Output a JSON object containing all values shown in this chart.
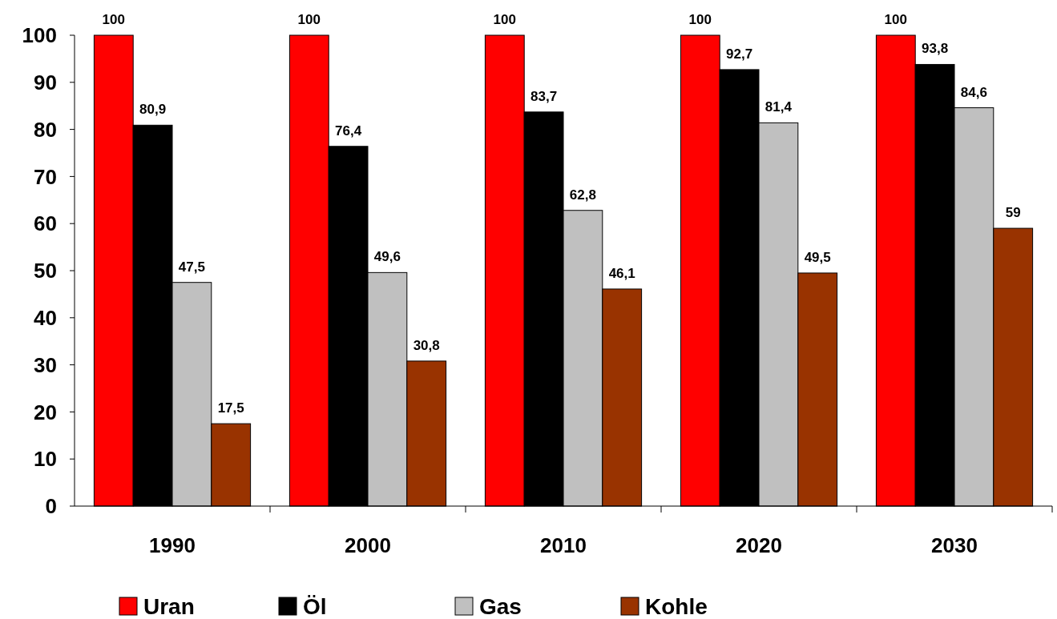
{
  "chart_data": {
    "type": "bar",
    "categories": [
      "1990",
      "2000",
      "2010",
      "2020",
      "2030"
    ],
    "series": [
      {
        "name": "Uran",
        "color": "#ff0000",
        "values": [
          100,
          100,
          100,
          100,
          100
        ],
        "value_labels": [
          "100",
          "100",
          "100",
          "100",
          "100"
        ]
      },
      {
        "name": "Öl",
        "color": "#000000",
        "values": [
          80.9,
          76.4,
          83.7,
          92.7,
          93.8
        ],
        "value_labels": [
          "80,9",
          "76,4",
          "83,7",
          "92,7",
          "93,8"
        ]
      },
      {
        "name": "Gas",
        "color": "#c0c0c0",
        "values": [
          47.5,
          49.6,
          62.8,
          81.4,
          84.6
        ],
        "value_labels": [
          "47,5",
          "49,6",
          "62,8",
          "81,4",
          "84,6"
        ]
      },
      {
        "name": "Kohle",
        "color": "#993300",
        "values": [
          17.5,
          30.8,
          46.1,
          49.5,
          59
        ],
        "value_labels": [
          "17,5",
          "30,8",
          "46,1",
          "49,5",
          "59"
        ]
      }
    ],
    "ylim": [
      0,
      100
    ],
    "yticks": [
      0,
      10,
      20,
      30,
      40,
      50,
      60,
      70,
      80,
      90,
      100
    ],
    "grid": false,
    "legend": "bottom"
  }
}
